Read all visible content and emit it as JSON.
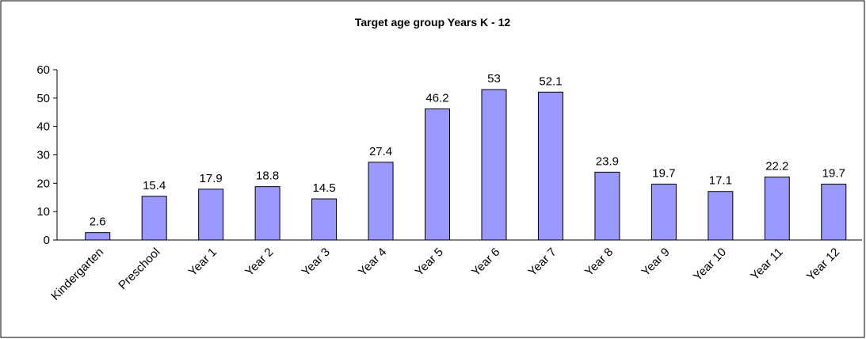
{
  "chart_data": {
    "type": "bar",
    "title": "Target age group Years K - 12",
    "categories": [
      "Kindergarten",
      "Preschool",
      "Year 1",
      "Year 2",
      "Year 3",
      "Year 4",
      "Year 5",
      "Year 6",
      "Year 7",
      "Year 8",
      "Year 9",
      "Year 10",
      "Year 11",
      "Year 12"
    ],
    "values": [
      2.6,
      15.4,
      17.9,
      18.8,
      14.5,
      27.4,
      46.2,
      53,
      52.1,
      23.9,
      19.7,
      17.1,
      22.2,
      19.7
    ],
    "color": "#9999ff",
    "ylim": [
      0,
      60
    ],
    "yticks": [
      0,
      10,
      20,
      30,
      40,
      50,
      60
    ],
    "grid": false
  }
}
